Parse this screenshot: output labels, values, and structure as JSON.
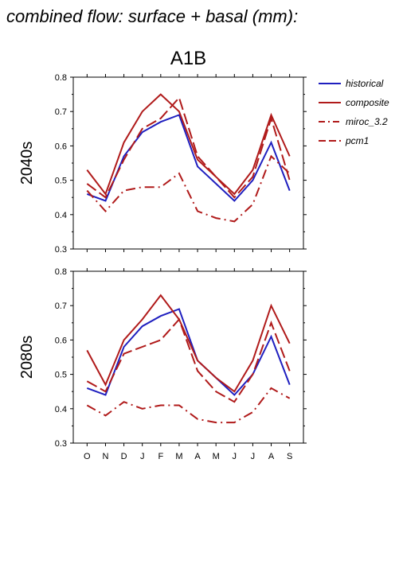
{
  "page": {
    "title": "combined flow: surface + basal (mm):"
  },
  "chart_data": [
    {
      "type": "line",
      "title": "A1B",
      "ylabel": "2040s",
      "categories": [
        "O",
        "N",
        "D",
        "J",
        "F",
        "M",
        "A",
        "M",
        "J",
        "J",
        "A",
        "S"
      ],
      "ylim": [
        0.3,
        0.8
      ],
      "yticks": [
        0.3,
        0.4,
        0.5,
        0.6,
        0.7,
        0.8
      ],
      "grid": false,
      "legend_position": "right",
      "series": [
        {
          "name": "historical",
          "color": "#1f1fbf",
          "style": "solid",
          "values": [
            0.46,
            0.44,
            0.57,
            0.64,
            0.67,
            0.69,
            0.54,
            0.49,
            0.44,
            0.5,
            0.61,
            0.47
          ]
        },
        {
          "name": "composite",
          "color": "#b01a1a",
          "style": "solid",
          "values": [
            0.53,
            0.46,
            0.61,
            0.7,
            0.75,
            0.7,
            0.56,
            0.51,
            0.46,
            0.53,
            0.69,
            0.57
          ]
        },
        {
          "name": "miroc_3.2",
          "color": "#b01a1a",
          "style": "dashdot",
          "values": [
            0.47,
            0.41,
            0.47,
            0.48,
            0.48,
            0.52,
            0.41,
            0.39,
            0.38,
            0.43,
            0.57,
            0.52
          ]
        },
        {
          "name": "pcm1",
          "color": "#b01a1a",
          "style": "dashed",
          "values": [
            0.49,
            0.45,
            0.56,
            0.65,
            0.68,
            0.74,
            0.57,
            0.51,
            0.45,
            0.51,
            0.68,
            0.5
          ]
        }
      ]
    },
    {
      "type": "line",
      "ylabel": "2080s",
      "categories": [
        "O",
        "N",
        "D",
        "J",
        "F",
        "M",
        "A",
        "M",
        "J",
        "J",
        "A",
        "S"
      ],
      "ylim": [
        0.3,
        0.8
      ],
      "yticks": [
        0.3,
        0.4,
        0.5,
        0.6,
        0.7,
        0.8
      ],
      "grid": false,
      "series": [
        {
          "name": "historical",
          "color": "#1f1fbf",
          "style": "solid",
          "values": [
            0.46,
            0.44,
            0.58,
            0.64,
            0.67,
            0.69,
            0.54,
            0.49,
            0.44,
            0.5,
            0.61,
            0.47
          ]
        },
        {
          "name": "composite",
          "color": "#b01a1a",
          "style": "solid",
          "values": [
            0.57,
            0.47,
            0.6,
            0.66,
            0.73,
            0.66,
            0.54,
            0.49,
            0.45,
            0.54,
            0.7,
            0.59
          ]
        },
        {
          "name": "miroc_3.2",
          "color": "#b01a1a",
          "style": "dashdot",
          "values": [
            0.41,
            0.38,
            0.42,
            0.4,
            0.41,
            0.41,
            0.37,
            0.36,
            0.36,
            0.39,
            0.46,
            0.43
          ]
        },
        {
          "name": "pcm1",
          "color": "#b01a1a",
          "style": "dashed",
          "values": [
            0.48,
            0.45,
            0.56,
            0.58,
            0.6,
            0.66,
            0.51,
            0.45,
            0.42,
            0.5,
            0.65,
            0.51
          ]
        }
      ]
    }
  ]
}
